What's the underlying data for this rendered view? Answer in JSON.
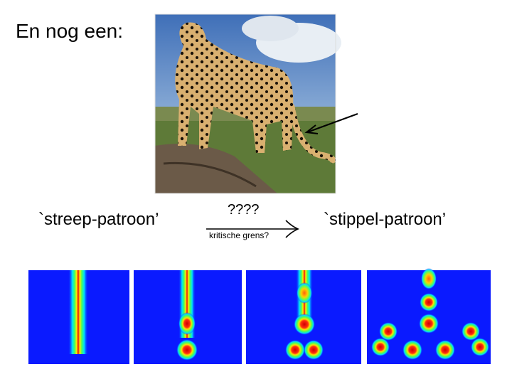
{
  "title": "En nog een:",
  "labels": {
    "stripe": "`streep-patroon’",
    "question": "????",
    "threshold": "kritische grens?",
    "spot": "`stippel-patroon’"
  }
}
